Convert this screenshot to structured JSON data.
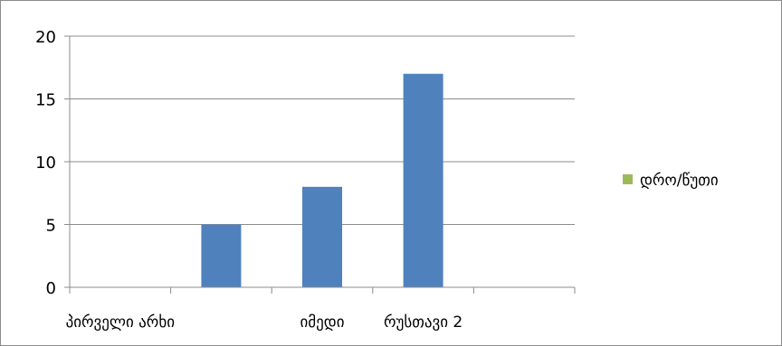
{
  "chart_data": {
    "type": "bar",
    "categories": [
      "პირველი არხი",
      "",
      "იმედი",
      "რუსთავი 2",
      ""
    ],
    "series": [
      {
        "name": "დრო/წუთი",
        "values": [
          0,
          5,
          8,
          17,
          0
        ],
        "color": "#4f81bd"
      }
    ],
    "legend_color": "#9bbb59",
    "ylim": [
      0,
      20
    ],
    "yticks": [
      0,
      5,
      10,
      15,
      20
    ],
    "grid": true,
    "legend": "right"
  }
}
